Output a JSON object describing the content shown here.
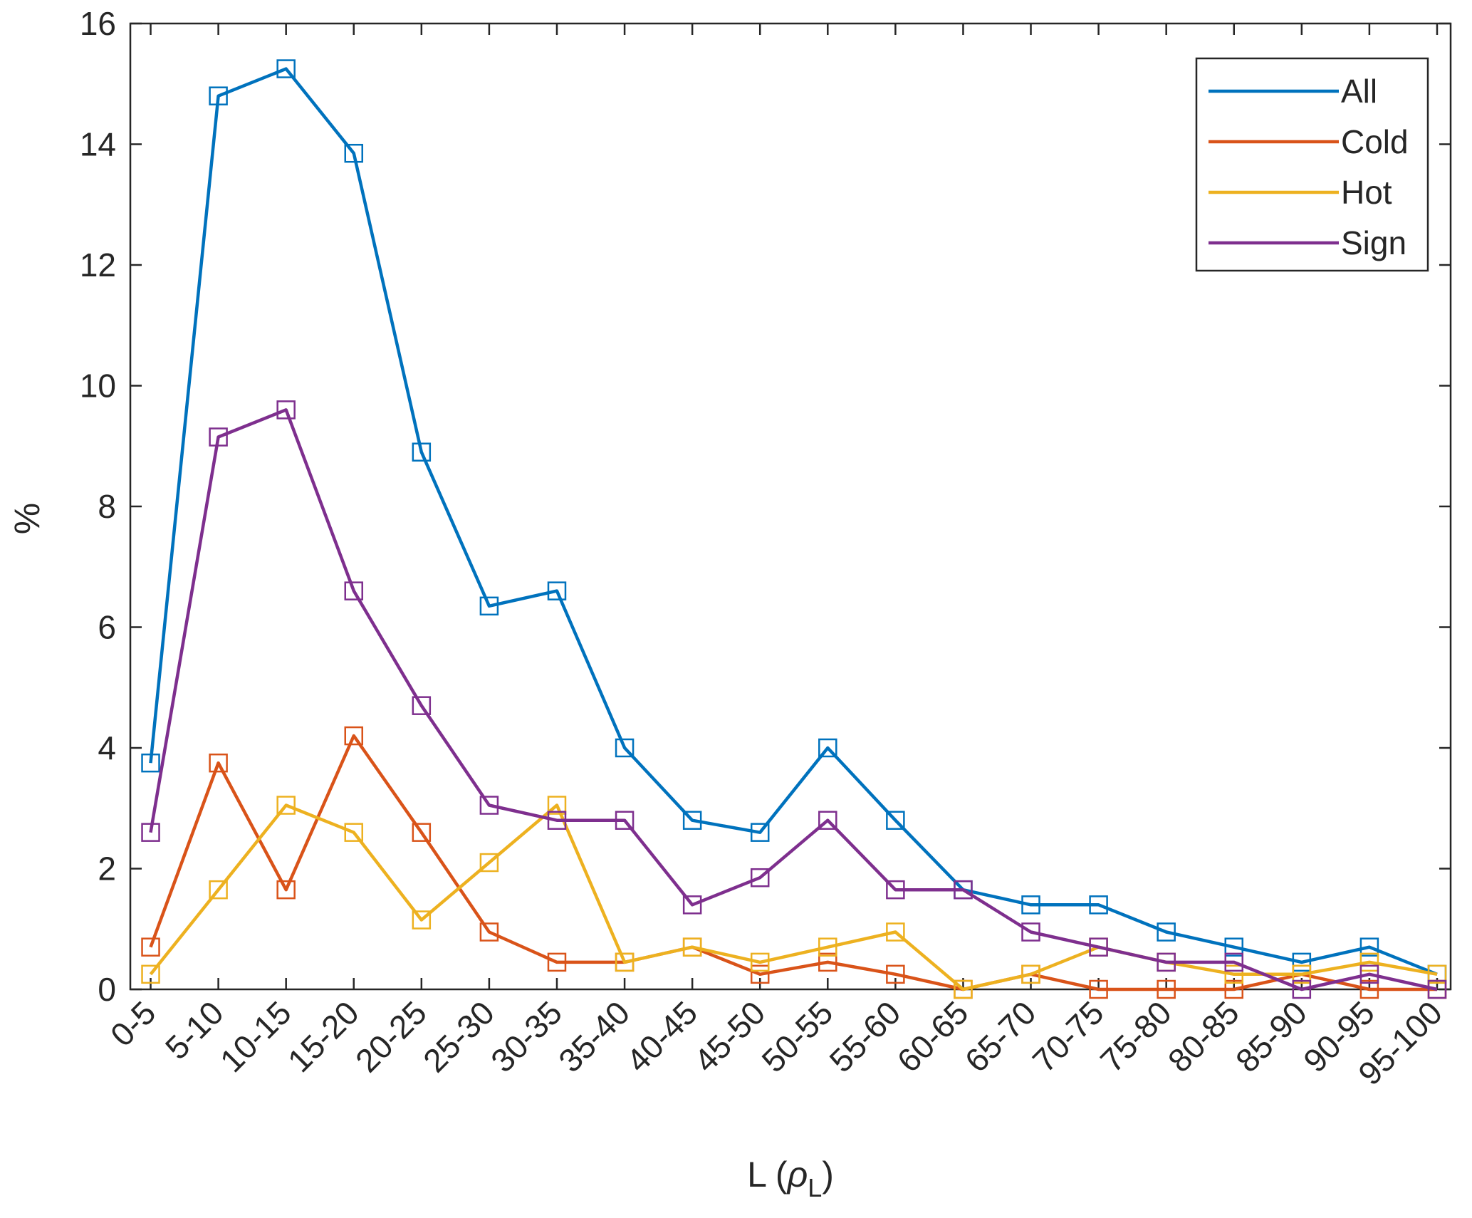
{
  "chart_data": {
    "type": "line",
    "xlabel": "L (ρL)",
    "xlabel_main": "L (",
    "xlabel_symbol": "ρ",
    "xlabel_subscript": "L",
    "xlabel_close": ")",
    "ylabel": "%",
    "ylim": [
      0,
      16
    ],
    "yticks": [
      "0",
      "2",
      "4",
      "6",
      "8",
      "10",
      "12",
      "14",
      "16"
    ],
    "grid": false,
    "legend_position": "top-right",
    "marker": "square",
    "categories": [
      "0-5",
      "5-10",
      "10-15",
      "15-20",
      "20-25",
      "25-30",
      "30-35",
      "35-40",
      "40-45",
      "45-50",
      "50-55",
      "55-60",
      "60-65",
      "65-70",
      "70-75",
      "75-80",
      "80-85",
      "85-90",
      "90-95",
      "95-100"
    ],
    "series": [
      {
        "name": "All",
        "color": "#0072BD",
        "values": [
          3.75,
          14.8,
          15.25,
          13.85,
          8.9,
          6.35,
          6.6,
          4.0,
          2.8,
          2.6,
          4.0,
          2.8,
          1.65,
          1.4,
          1.4,
          0.95,
          0.7,
          0.45,
          0.7,
          0.25
        ]
      },
      {
        "name": "Cold",
        "color": "#D95319",
        "values": [
          0.7,
          3.75,
          1.65,
          4.2,
          2.6,
          0.95,
          0.45,
          0.45,
          0.7,
          0.25,
          0.45,
          0.25,
          0.0,
          0.25,
          0.0,
          0.0,
          0.0,
          0.25,
          0.0,
          0.0
        ]
      },
      {
        "name": "Hot",
        "color": "#EDB120",
        "values": [
          0.25,
          1.65,
          3.05,
          2.6,
          1.15,
          2.1,
          3.05,
          0.45,
          0.7,
          0.45,
          0.7,
          0.95,
          0.0,
          0.25,
          0.7,
          0.45,
          0.25,
          0.25,
          0.45,
          0.25
        ]
      },
      {
        "name": "Sign",
        "color": "#7E2F8E",
        "values": [
          2.6,
          9.15,
          9.6,
          6.6,
          4.7,
          3.05,
          2.8,
          2.8,
          1.4,
          1.85,
          2.8,
          1.65,
          1.65,
          0.95,
          0.7,
          0.45,
          0.45,
          0.0,
          0.25,
          0.0
        ]
      }
    ]
  }
}
